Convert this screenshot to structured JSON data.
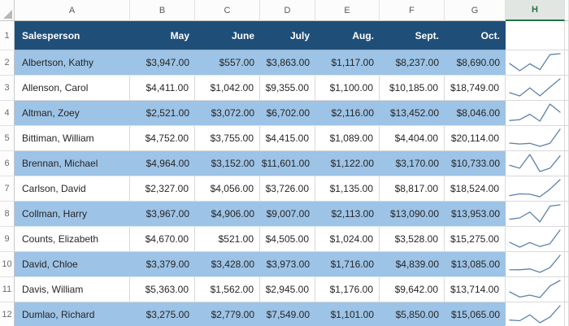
{
  "sheet": {
    "name": "sales-spreadsheet",
    "gutter_width": 18,
    "sliver_width": 5,
    "row1_height": 36,
    "data_row_height": 31,
    "colhead_height": 26,
    "columns": [
      {
        "letter": "A",
        "width": 142,
        "selected": false
      },
      {
        "letter": "B",
        "width": 80,
        "selected": false
      },
      {
        "letter": "C",
        "width": 80,
        "selected": false
      },
      {
        "letter": "D",
        "width": 68,
        "selected": false
      },
      {
        "letter": "E",
        "width": 79,
        "selected": false
      },
      {
        "letter": "F",
        "width": 80,
        "selected": false
      },
      {
        "letter": "G",
        "width": 75,
        "selected": false
      },
      {
        "letter": "H",
        "width": 73,
        "selected": true
      }
    ],
    "header_row": {
      "number": "1",
      "cells": [
        "Salesperson",
        "May",
        "June",
        "July",
        "Aug.",
        "Sept.",
        "Oct."
      ]
    },
    "currency_prefix": "$",
    "rows": [
      {
        "number": "2",
        "name": "Albertson, Kathy",
        "values": [
          3947,
          557,
          3863,
          1117,
          8237,
          8690
        ]
      },
      {
        "number": "3",
        "name": "Allenson, Carol",
        "values": [
          4411,
          1042,
          9355,
          1100,
          10185,
          18749
        ]
      },
      {
        "number": "4",
        "name": "Altman, Zoey",
        "values": [
          2521,
          3072,
          6702,
          2116,
          13452,
          8046
        ]
      },
      {
        "number": "5",
        "name": "Bittiman, William",
        "values": [
          4752,
          3755,
          4415,
          1089,
          4404,
          20114
        ]
      },
      {
        "number": "6",
        "name": "Brennan, Michael",
        "values": [
          4964,
          3152,
          11601,
          1122,
          3170,
          10733
        ]
      },
      {
        "number": "7",
        "name": "Carlson, David",
        "values": [
          2327,
          4056,
          3726,
          1135,
          8817,
          18524
        ]
      },
      {
        "number": "8",
        "name": "Collman, Harry",
        "values": [
          3967,
          4906,
          9007,
          2113,
          13090,
          13953
        ]
      },
      {
        "number": "9",
        "name": "Counts, Elizabeth",
        "values": [
          4670,
          521,
          4505,
          1024,
          3528,
          15275
        ]
      },
      {
        "number": "10",
        "name": "David, Chloe",
        "values": [
          3379,
          3428,
          3973,
          1716,
          4839,
          13085
        ]
      },
      {
        "number": "11",
        "name": "Davis, William",
        "values": [
          5363,
          1562,
          2945,
          1176,
          9642,
          13714
        ]
      },
      {
        "number": "12",
        "name": "Dumlao, Richard",
        "values": [
          3275,
          2779,
          7549,
          1101,
          5850,
          15065
        ]
      }
    ],
    "colors": {
      "table_header_bg": "#1F4E79",
      "banded_row_bg": "#9DC3E6",
      "sparkline": "#5E81A8",
      "selected_column_accent": "#217346"
    }
  }
}
